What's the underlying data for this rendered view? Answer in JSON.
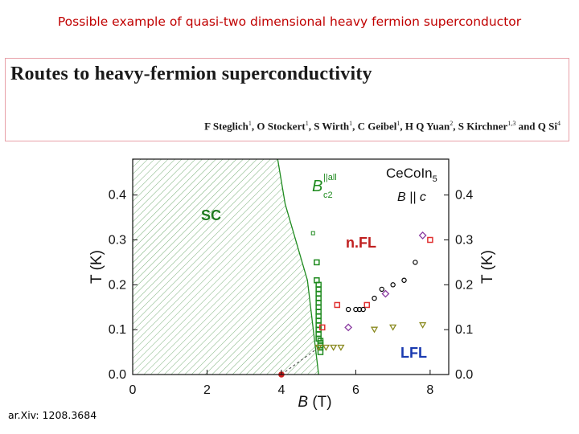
{
  "slide": {
    "title": "Possible example of quasi-two dimensional heavy fermion superconductor",
    "citation": "ar.Xiv: 1208.3684"
  },
  "paper": {
    "title": "Routes to heavy-fermion superconductivity",
    "authors": [
      {
        "name": "F Steglich",
        "aff": "1"
      },
      {
        "name": "O Stockert",
        "aff": "1"
      },
      {
        "name": "S Wirth",
        "aff": "1"
      },
      {
        "name": "C Geibel",
        "aff": "1"
      },
      {
        "name": "H Q Yuan",
        "aff": "2"
      },
      {
        "name": "S Kirchner",
        "aff": "1,3"
      },
      {
        "name": "Q Si",
        "aff": "4"
      }
    ],
    "separator": ", ",
    "final_conjunction": " and "
  },
  "chart_data": {
    "type": "scatter",
    "xlabel_symbol": "B",
    "xlabel_unit": "(T)",
    "ylabel_left": "T (K)",
    "ylabel_right": "T (K)",
    "xlim": [
      0,
      8.5
    ],
    "ylim": [
      0,
      0.48
    ],
    "xticks": [
      "0",
      "2",
      "4",
      "6",
      "8"
    ],
    "xtick_values": [
      0,
      2,
      4,
      6,
      8
    ],
    "yticks": [
      "0.0",
      "0.1",
      "0.2",
      "0.3",
      "0.4"
    ],
    "ytick_values": [
      0.0,
      0.1,
      0.2,
      0.3,
      0.4
    ],
    "material_prefix": "CeCoIn",
    "material_subscript": "5",
    "field_orientation": "B || c",
    "bc2_symbol": "B",
    "bc2_sub": "c2",
    "bc2_sup": "||all",
    "region_labels": {
      "sc": "SC",
      "nfl": "n.FL",
      "lfl": "LFL"
    },
    "colors": {
      "sc_line": "#1e8a1e",
      "sc_points": "#1e8a1e",
      "red_squares": "#e03030",
      "black_circles": "#000000",
      "purple_diamonds": "#8a3aa0",
      "triangles": "#8a8a20",
      "lfl_label": "#1a3ab0",
      "dot": "#d02020"
    },
    "sc_boundary": [
      [
        3.9,
        0.48
      ],
      [
        4.1,
        0.38
      ],
      [
        4.7,
        0.21
      ],
      [
        5.0,
        0.0
      ]
    ],
    "lfl_boundary": [
      [
        4.0,
        0.0
      ],
      [
        5.0,
        0.06
      ]
    ],
    "series": [
      {
        "name": "",
        "marker": "square-open",
        "color_key": "sc_points",
        "x": [
          4.95,
          4.95,
          5.0,
          5.0,
          5.0,
          5.0,
          5.0,
          5.0,
          5.0,
          5.0,
          5.0,
          5.0,
          5.0,
          5.0,
          5.0,
          5.05,
          5.05,
          5.05,
          5.05,
          5.05
        ],
        "y": [
          0.25,
          0.21,
          0.2,
          0.19,
          0.18,
          0.17,
          0.16,
          0.15,
          0.14,
          0.13,
          0.12,
          0.11,
          0.1,
          0.09,
          0.08,
          0.075,
          0.07,
          0.065,
          0.06,
          0.05
        ]
      },
      {
        "name": "",
        "marker": "square-open-small",
        "color_key": "sc_points",
        "x": [
          4.85
        ],
        "y": [
          0.315
        ]
      },
      {
        "name": "",
        "marker": "square-open",
        "color_key": "red_squares",
        "x": [
          5.1,
          5.5,
          6.3,
          8.0
        ],
        "y": [
          0.105,
          0.155,
          0.155,
          0.3
        ]
      },
      {
        "name": "",
        "marker": "circle-open",
        "color_key": "black_circles",
        "x": [
          5.8,
          6.0,
          6.1,
          6.2,
          6.5,
          6.7,
          7.0,
          7.3,
          7.6
        ],
        "y": [
          0.145,
          0.145,
          0.145,
          0.145,
          0.17,
          0.19,
          0.2,
          0.21,
          0.25
        ]
      },
      {
        "name": "",
        "marker": "diamond-open",
        "color_key": "purple_diamonds",
        "x": [
          5.8,
          6.8,
          7.8
        ],
        "y": [
          0.105,
          0.18,
          0.31
        ]
      },
      {
        "name": "",
        "marker": "triangle-down-open",
        "color_key": "triangles",
        "x": [
          5.0,
          5.2,
          5.4,
          5.6,
          6.5,
          7.0,
          7.8
        ],
        "y": [
          0.06,
          0.06,
          0.06,
          0.06,
          0.1,
          0.105,
          0.11
        ]
      },
      {
        "name": "",
        "marker": "circle-filled",
        "color_key": "dot",
        "x": [
          4.0
        ],
        "y": [
          0.0
        ]
      }
    ],
    "grid": false,
    "legend": "none"
  }
}
